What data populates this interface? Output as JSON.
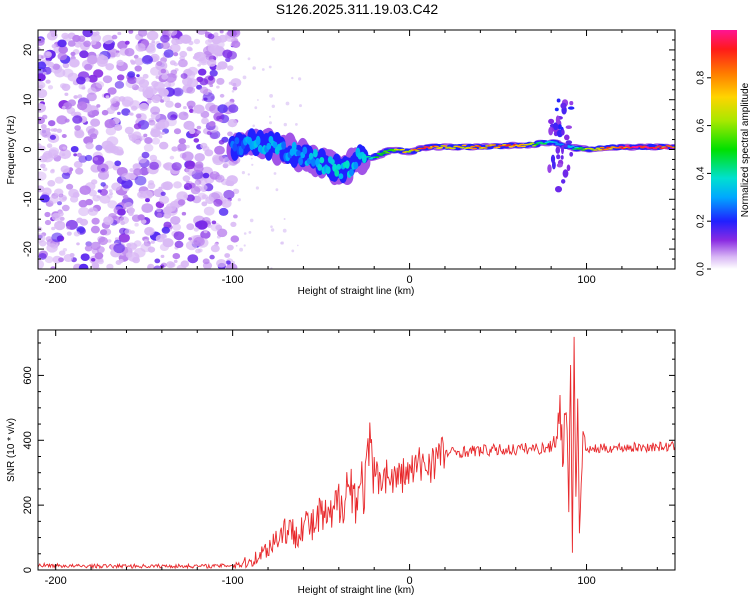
{
  "page": {
    "title": "S126.2025.311.19.03.C42"
  },
  "chart_data": [
    {
      "type": "heatmap",
      "name": "spectrogram",
      "xlabel": "Height of straight line (km)",
      "ylabel": "Frequency (Hz)",
      "xlim": [
        -210,
        150
      ],
      "ylim": [
        -24,
        24
      ],
      "xticks": [
        -200,
        -100,
        0,
        100
      ],
      "xtick_labels": [
        "-200",
        "-100",
        "0",
        "100"
      ],
      "yticks": [
        -20,
        -10,
        0,
        10,
        20
      ],
      "ytick_labels": [
        "-20",
        "-10",
        "0",
        "10",
        "20"
      ],
      "colorbar": {
        "label": "Normalized spectral amplitude",
        "range": [
          0,
          1
        ],
        "ticks": [
          0.0,
          0.2,
          0.4,
          0.6,
          0.8
        ],
        "tick_labels": [
          "0.0",
          "0.2",
          "0.4",
          "0.6",
          "0.8"
        ]
      },
      "noise_region_x": [
        -210,
        -100
      ],
      "signal_track": {
        "x": [
          -100,
          -90,
          -80,
          -70,
          -60,
          -50,
          -40,
          -35,
          -30,
          -20,
          -10,
          0,
          10,
          20,
          40,
          60,
          70,
          80,
          90,
          100,
          120,
          150
        ],
        "frequency": [
          0.5,
          1.5,
          1.0,
          0.0,
          -1.5,
          -2.5,
          -4.0,
          -4.0,
          -2.0,
          -1.5,
          0.0,
          -0.5,
          0.5,
          0.5,
          0.5,
          0.8,
          1.0,
          1.5,
          0.5,
          0.0,
          0.5,
          0.5
        ],
        "amplitude": [
          0.25,
          0.3,
          0.35,
          0.3,
          0.3,
          0.35,
          0.4,
          0.35,
          0.3,
          0.5,
          0.6,
          0.75,
          0.9,
          0.75,
          0.8,
          0.85,
          0.6,
          0.35,
          0.3,
          0.65,
          0.95,
          0.95
        ]
      }
    },
    {
      "type": "line",
      "name": "snr",
      "xlabel": "Height of straight line (km)",
      "ylabel": "SNR (10 * v/v)",
      "xlim": [
        -210,
        150
      ],
      "ylim": [
        0,
        740
      ],
      "xticks": [
        -200,
        -100,
        0,
        100
      ],
      "xtick_labels": [
        "-200",
        "-100",
        "0",
        "100"
      ],
      "yticks": [
        0,
        200,
        400,
        600
      ],
      "ytick_labels": [
        "0",
        "200",
        "400",
        "600"
      ],
      "color": "#e8292c",
      "series": [
        {
          "name": "SNR",
          "x": [
            -210,
            -190,
            -170,
            -150,
            -130,
            -110,
            -100,
            -90,
            -85,
            -80,
            -75,
            -70,
            -65,
            -60,
            -55,
            -50,
            -45,
            -40,
            -35,
            -30,
            -25,
            -22,
            -20,
            -18,
            -15,
            -10,
            -5,
            0,
            5,
            10,
            15,
            20,
            30,
            40,
            50,
            60,
            70,
            75,
            80,
            83,
            85,
            87,
            88,
            90,
            91,
            92,
            93,
            94,
            95,
            96,
            98,
            100,
            110,
            120,
            130,
            140,
            150
          ],
          "y": [
            15,
            12,
            12,
            12,
            12,
            12,
            15,
            25,
            45,
            70,
            100,
            130,
            110,
            150,
            130,
            170,
            150,
            210,
            260,
            230,
            270,
            350,
            300,
            280,
            300,
            280,
            290,
            300,
            320,
            330,
            345,
            360,
            365,
            368,
            370,
            372,
            375,
            375,
            380,
            430,
            490,
            330,
            560,
            200,
            690,
            60,
            720,
            200,
            600,
            100,
            420,
            370,
            375,
            378,
            378,
            380,
            380
          ]
        }
      ]
    }
  ]
}
